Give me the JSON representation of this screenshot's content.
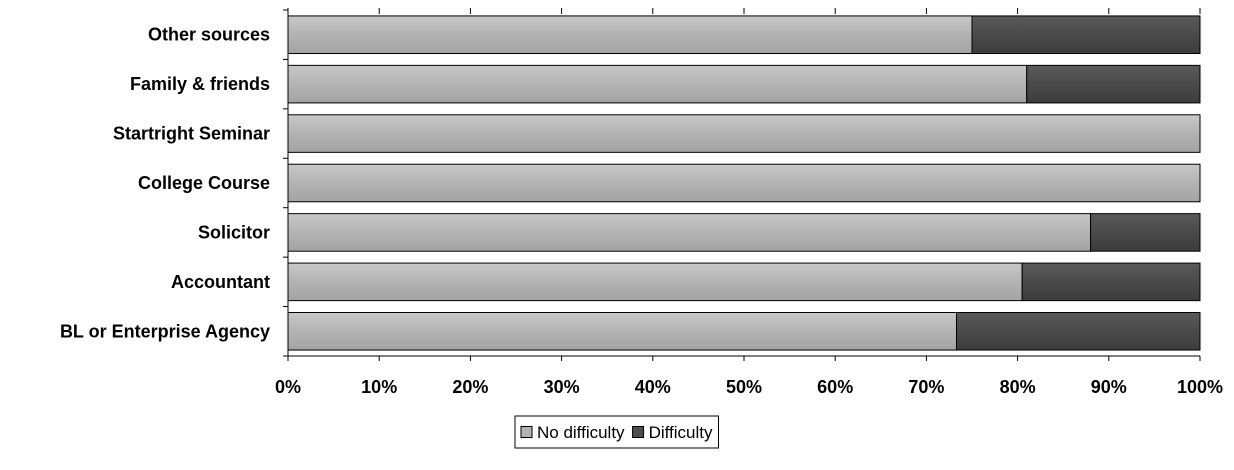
{
  "chart_data": {
    "type": "bar",
    "orientation": "horizontal",
    "stacked": true,
    "normalized_percent": true,
    "categories": [
      "Other sources",
      "Family & friends",
      "Startright Seminar",
      "College Course",
      "Solicitor",
      "Accountant",
      "BL or Enterprise Agency"
    ],
    "series": [
      {
        "name": "No difficulty",
        "color": "#b3b3b3",
        "values": [
          75,
          81,
          100,
          100,
          88,
          80.5,
          73.3
        ]
      },
      {
        "name": "Difficulty",
        "color": "#4d4d4d",
        "values": [
          25,
          19,
          0,
          0,
          12,
          19.5,
          26.7
        ]
      }
    ],
    "xlim": [
      0,
      100
    ],
    "x_ticks": [
      "0%",
      "10%",
      "20%",
      "30%",
      "40%",
      "50%",
      "60%",
      "70%",
      "80%",
      "90%",
      "100%"
    ],
    "title": "",
    "xlabel": "",
    "ylabel": "",
    "grid": false,
    "legend_position": "bottom"
  }
}
